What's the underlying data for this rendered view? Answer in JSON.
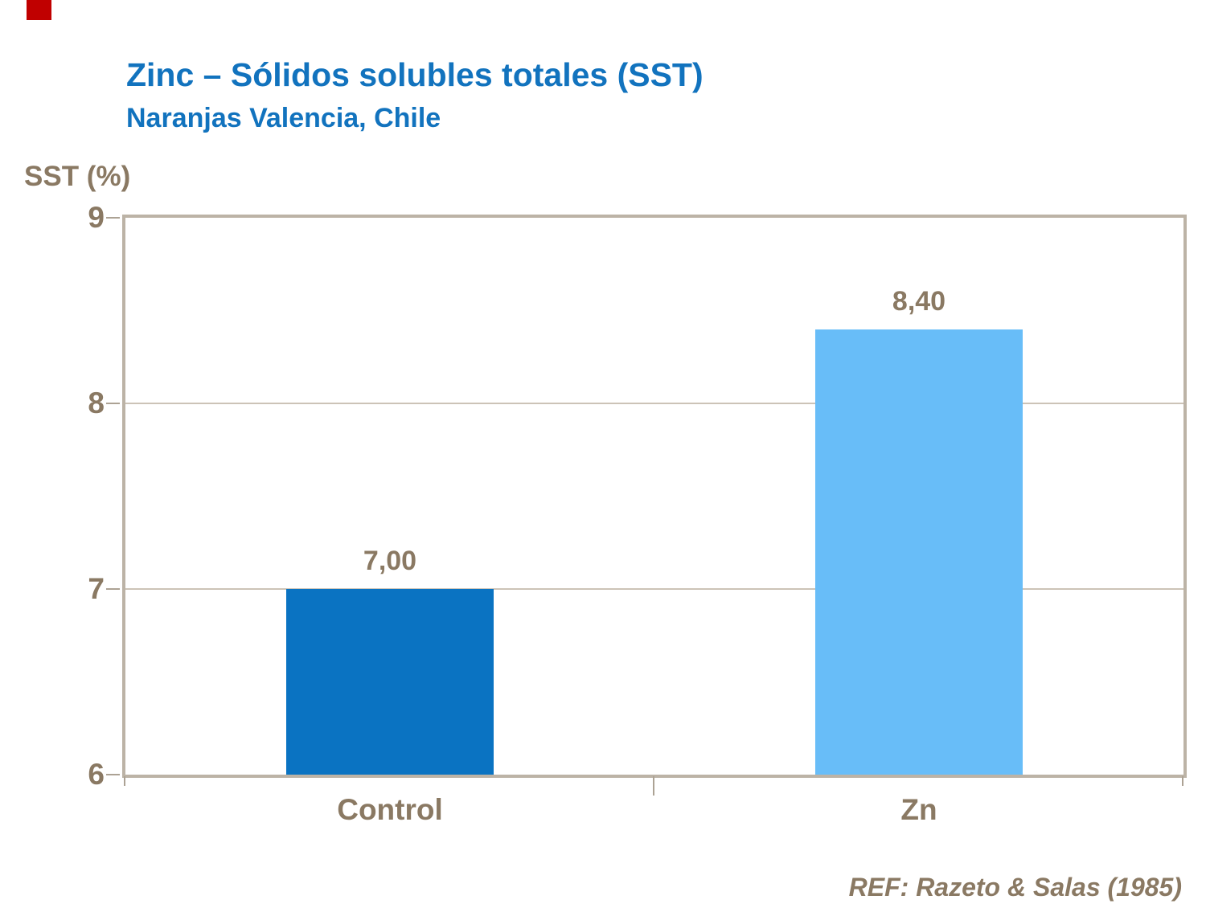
{
  "accent_color": "#C00000",
  "header": {
    "title": "Zinc – Sólidos solubles totales (SST)",
    "subtitle": "Naranjas Valencia, Chile",
    "title_color": "#1273BE"
  },
  "footer": {
    "reference": "REF: Razeto & Salas (1985)"
  },
  "chart_data": {
    "type": "bar",
    "title": "Zinc – Sólidos solubles totales (SST)",
    "subtitle": "Naranjas Valencia, Chile",
    "categories": [
      "Control",
      "Zn"
    ],
    "values": [
      7.0,
      8.4
    ],
    "value_labels": [
      "7,00",
      "8,40"
    ],
    "bar_colors": [
      "#0A73C2",
      "#68BDF8"
    ],
    "ylabel": "SST (%)",
    "xlabel": "",
    "ylim": [
      6,
      9
    ],
    "yticks": [
      6,
      7,
      8,
      9
    ],
    "grid": true,
    "legend": "none",
    "text_color": "#8A7963",
    "frame_color": "#BCB3A6",
    "gridline_color": "#CCC3B7",
    "reference": "REF: Razeto & Salas (1985)"
  }
}
